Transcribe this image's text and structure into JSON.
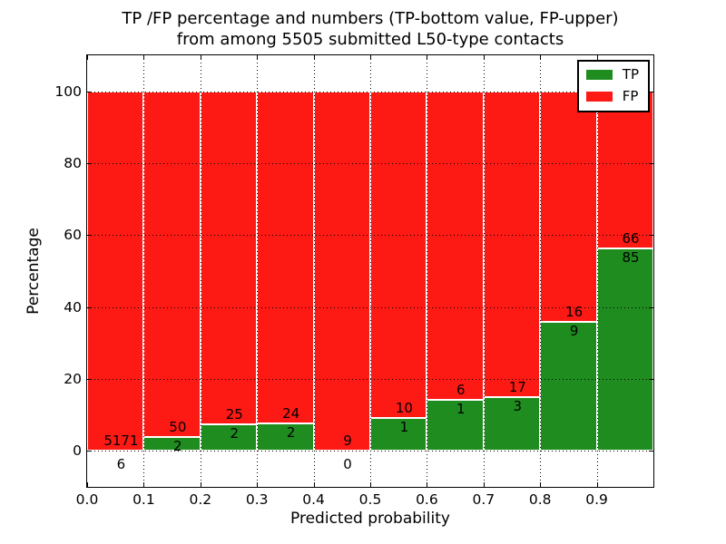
{
  "chart_data": {
    "type": "bar",
    "stacked": true,
    "units": "percent of bin total",
    "title_line1": "TP /FP percentage and numbers (TP-bottom value, FP-upper)",
    "title_line2": "from among 5505 submitted L50-type contacts",
    "xlabel": "Predicted probability",
    "ylabel": "Percentage",
    "x_ticks": [
      "0.0",
      "0.1",
      "0.2",
      "0.3",
      "0.4",
      "0.5",
      "0.6",
      "0.7",
      "0.8",
      "0.9"
    ],
    "y_ticks": [
      0,
      20,
      40,
      60,
      80,
      100
    ],
    "xlim": [
      0.0,
      1.0
    ],
    "ylim": [
      -10,
      110
    ],
    "grid": "dotted",
    "legend_position": "upper-right",
    "series": [
      {
        "name": "TP",
        "color": "#1f8c1f"
      },
      {
        "name": "FP",
        "color": "#fd1a15"
      }
    ],
    "bins": [
      {
        "range": "0.0-0.1",
        "tp": 6,
        "fp": 5171,
        "tp_percent": 0.12
      },
      {
        "range": "0.1-0.2",
        "tp": 2,
        "fp": 50,
        "tp_percent": 3.85
      },
      {
        "range": "0.2-0.3",
        "tp": 2,
        "fp": 25,
        "tp_percent": 7.41
      },
      {
        "range": "0.3-0.4",
        "tp": 2,
        "fp": 24,
        "tp_percent": 7.69
      },
      {
        "range": "0.4-0.5",
        "tp": 0,
        "fp": 9,
        "tp_percent": 0.0
      },
      {
        "range": "0.5-0.6",
        "tp": 1,
        "fp": 10,
        "tp_percent": 9.09
      },
      {
        "range": "0.6-0.7",
        "tp": 1,
        "fp": 6,
        "tp_percent": 14.29
      },
      {
        "range": "0.7-0.8",
        "tp": 3,
        "fp": 17,
        "tp_percent": 15.0
      },
      {
        "range": "0.8-0.9",
        "tp": 9,
        "fp": 16,
        "tp_percent": 36.0
      },
      {
        "range": "0.9-1.0",
        "tp": 85,
        "fp": 66,
        "tp_percent": 56.29
      }
    ]
  }
}
